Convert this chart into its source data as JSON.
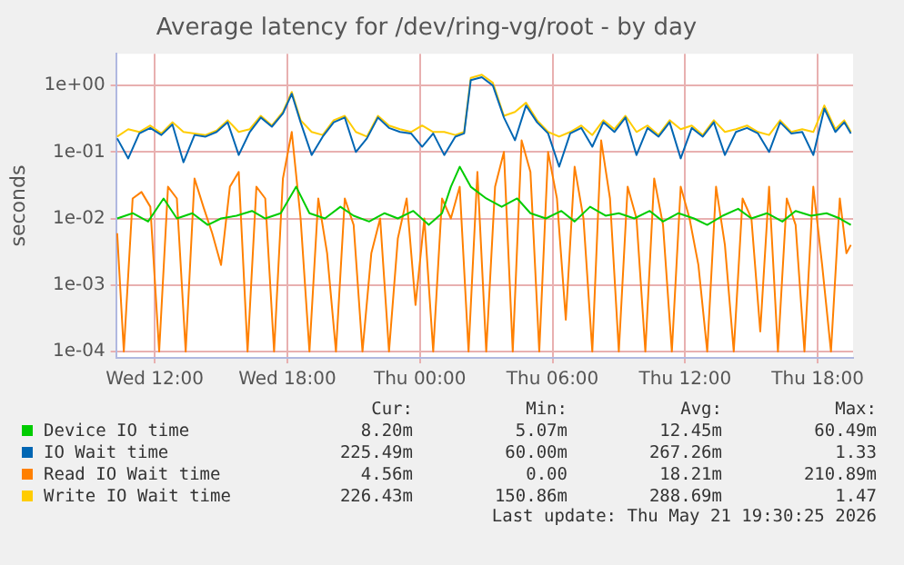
{
  "chart_data": {
    "type": "line",
    "title": "Average latency for /dev/ring-vg/root - by day",
    "ylabel": "seconds",
    "log": "y",
    "grid": true,
    "legend": "bottom",
    "marker": "none",
    "line_style": "solid",
    "xlim": [
      "2026-05-20T10:15",
      "2026-05-21T19:36"
    ],
    "xticks": [
      {
        "value": "2026-05-20T12:00",
        "label": "Wed 12:00"
      },
      {
        "value": "2026-05-20T18:00",
        "label": "Wed 18:00"
      },
      {
        "value": "2026-05-21T00:00",
        "label": "Thu 00:00"
      },
      {
        "value": "2026-05-21T06:00",
        "label": "Thu 06:00"
      },
      {
        "value": "2026-05-21T12:00",
        "label": "Thu 12:00"
      },
      {
        "value": "2026-05-21T18:00",
        "label": "Thu 18:00"
      }
    ],
    "ylim": [
      8e-05,
      3
    ],
    "yticks": [
      {
        "value": 0.0001,
        "label": "1e-04"
      },
      {
        "value": 0.001,
        "label": "1e-03"
      },
      {
        "value": 0.01,
        "label": "1e-02"
      },
      {
        "value": 0.1,
        "label": "1e-01"
      },
      {
        "value": 1,
        "label": "1e+00"
      }
    ],
    "series": [
      {
        "name": "Device IO time",
        "color": "#00cc00",
        "x": [
          "2026-05-20T10:18",
          "2026-05-20T11:00",
          "2026-05-20T11:42",
          "2026-05-20T12:24",
          "2026-05-20T13:00",
          "2026-05-20T13:42",
          "2026-05-20T14:24",
          "2026-05-20T15:00",
          "2026-05-20T15:42",
          "2026-05-20T16:24",
          "2026-05-20T17:00",
          "2026-05-20T17:42",
          "2026-05-20T18:24",
          "2026-05-20T19:00",
          "2026-05-20T19:42",
          "2026-05-20T20:24",
          "2026-05-20T21:00",
          "2026-05-20T21:42",
          "2026-05-20T22:24",
          "2026-05-20T23:00",
          "2026-05-20T23:42",
          "2026-05-21T00:24",
          "2026-05-21T01:00",
          "2026-05-21T01:24",
          "2026-05-21T01:48",
          "2026-05-21T02:18",
          "2026-05-21T03:00",
          "2026-05-21T03:42",
          "2026-05-21T04:24",
          "2026-05-21T05:00",
          "2026-05-21T05:42",
          "2026-05-21T06:24",
          "2026-05-21T07:00",
          "2026-05-21T07:42",
          "2026-05-21T08:24",
          "2026-05-21T09:00",
          "2026-05-21T09:42",
          "2026-05-21T10:24",
          "2026-05-21T11:00",
          "2026-05-21T11:42",
          "2026-05-21T12:24",
          "2026-05-21T13:00",
          "2026-05-21T13:42",
          "2026-05-21T14:24",
          "2026-05-21T15:00",
          "2026-05-21T15:42",
          "2026-05-21T16:24",
          "2026-05-21T17:00",
          "2026-05-21T17:42",
          "2026-05-21T18:24",
          "2026-05-21T19:00",
          "2026-05-21T19:30"
        ],
        "values": [
          0.01,
          0.012,
          0.009,
          0.02,
          0.01,
          0.012,
          0.008,
          0.01,
          0.011,
          0.013,
          0.01,
          0.012,
          0.03,
          0.012,
          0.01,
          0.015,
          0.011,
          0.009,
          0.012,
          0.01,
          0.013,
          0.008,
          0.012,
          0.03,
          0.06,
          0.03,
          0.02,
          0.015,
          0.02,
          0.012,
          0.01,
          0.013,
          0.009,
          0.015,
          0.011,
          0.012,
          0.01,
          0.013,
          0.009,
          0.012,
          0.01,
          0.008,
          0.011,
          0.014,
          0.01,
          0.012,
          0.009,
          0.013,
          0.011,
          0.012,
          0.01,
          0.008
        ]
      },
      {
        "name": "IO Wait time",
        "color": "#0066b3",
        "x": [
          "2026-05-20T10:18",
          "2026-05-20T10:48",
          "2026-05-20T11:18",
          "2026-05-20T11:48",
          "2026-05-20T12:18",
          "2026-05-20T12:48",
          "2026-05-20T13:18",
          "2026-05-20T13:48",
          "2026-05-20T14:18",
          "2026-05-20T14:48",
          "2026-05-20T15:18",
          "2026-05-20T15:48",
          "2026-05-20T16:18",
          "2026-05-20T16:48",
          "2026-05-20T17:18",
          "2026-05-20T17:48",
          "2026-05-20T18:12",
          "2026-05-20T18:36",
          "2026-05-20T19:06",
          "2026-05-20T19:36",
          "2026-05-20T20:06",
          "2026-05-20T20:36",
          "2026-05-20T21:06",
          "2026-05-20T21:36",
          "2026-05-20T22:06",
          "2026-05-20T22:36",
          "2026-05-20T23:06",
          "2026-05-20T23:36",
          "2026-05-21T00:06",
          "2026-05-21T00:36",
          "2026-05-21T01:06",
          "2026-05-21T01:36",
          "2026-05-21T02:00",
          "2026-05-21T02:18",
          "2026-05-21T02:48",
          "2026-05-21T03:18",
          "2026-05-21T03:48",
          "2026-05-21T04:18",
          "2026-05-21T04:48",
          "2026-05-21T05:18",
          "2026-05-21T05:48",
          "2026-05-21T06:18",
          "2026-05-21T06:48",
          "2026-05-21T07:18",
          "2026-05-21T07:48",
          "2026-05-21T08:18",
          "2026-05-21T08:48",
          "2026-05-21T09:18",
          "2026-05-21T09:48",
          "2026-05-21T10:18",
          "2026-05-21T10:48",
          "2026-05-21T11:18",
          "2026-05-21T11:48",
          "2026-05-21T12:18",
          "2026-05-21T12:48",
          "2026-05-21T13:18",
          "2026-05-21T13:48",
          "2026-05-21T14:18",
          "2026-05-21T14:48",
          "2026-05-21T15:18",
          "2026-05-21T15:48",
          "2026-05-21T16:18",
          "2026-05-21T16:48",
          "2026-05-21T17:18",
          "2026-05-21T17:48",
          "2026-05-21T18:18",
          "2026-05-21T18:48",
          "2026-05-21T19:12",
          "2026-05-21T19:30"
        ],
        "values": [
          0.16,
          0.08,
          0.19,
          0.23,
          0.18,
          0.26,
          0.07,
          0.18,
          0.17,
          0.2,
          0.28,
          0.09,
          0.2,
          0.33,
          0.24,
          0.38,
          0.75,
          0.28,
          0.09,
          0.17,
          0.28,
          0.33,
          0.1,
          0.16,
          0.33,
          0.23,
          0.2,
          0.19,
          0.12,
          0.19,
          0.09,
          0.17,
          0.19,
          1.2,
          1.33,
          1.0,
          0.33,
          0.15,
          0.5,
          0.28,
          0.19,
          0.06,
          0.19,
          0.23,
          0.12,
          0.28,
          0.2,
          0.33,
          0.09,
          0.23,
          0.17,
          0.28,
          0.08,
          0.23,
          0.17,
          0.28,
          0.09,
          0.2,
          0.23,
          0.19,
          0.1,
          0.28,
          0.19,
          0.2,
          0.09,
          0.45,
          0.2,
          0.28,
          0.19
        ]
      },
      {
        "name": "Read IO Wait time",
        "color": "#ff8000",
        "x": [
          "2026-05-20T10:18",
          "2026-05-20T10:36",
          "2026-05-20T11:00",
          "2026-05-20T11:24",
          "2026-05-20T11:48",
          "2026-05-20T12:12",
          "2026-05-20T12:36",
          "2026-05-20T13:00",
          "2026-05-20T13:24",
          "2026-05-20T13:48",
          "2026-05-20T14:12",
          "2026-05-20T14:36",
          "2026-05-20T15:00",
          "2026-05-20T15:24",
          "2026-05-20T15:48",
          "2026-05-20T16:12",
          "2026-05-20T16:36",
          "2026-05-20T17:00",
          "2026-05-20T17:24",
          "2026-05-20T17:48",
          "2026-05-20T18:12",
          "2026-05-20T18:36",
          "2026-05-20T19:00",
          "2026-05-20T19:24",
          "2026-05-20T19:48",
          "2026-05-20T20:12",
          "2026-05-20T20:36",
          "2026-05-20T21:00",
          "2026-05-20T21:24",
          "2026-05-20T21:48",
          "2026-05-20T22:12",
          "2026-05-20T22:36",
          "2026-05-20T23:00",
          "2026-05-20T23:24",
          "2026-05-20T23:48",
          "2026-05-21T00:12",
          "2026-05-21T00:36",
          "2026-05-21T01:00",
          "2026-05-21T01:24",
          "2026-05-21T01:48",
          "2026-05-21T02:12",
          "2026-05-21T02:36",
          "2026-05-21T03:00",
          "2026-05-21T03:24",
          "2026-05-21T03:48",
          "2026-05-21T04:12",
          "2026-05-21T04:36",
          "2026-05-21T05:00",
          "2026-05-21T05:24",
          "2026-05-21T05:48",
          "2026-05-21T06:12",
          "2026-05-21T06:36",
          "2026-05-21T07:00",
          "2026-05-21T07:24",
          "2026-05-21T07:48",
          "2026-05-21T08:12",
          "2026-05-21T08:36",
          "2026-05-21T09:00",
          "2026-05-21T09:24",
          "2026-05-21T09:48",
          "2026-05-21T10:12",
          "2026-05-21T10:36",
          "2026-05-21T11:00",
          "2026-05-21T11:24",
          "2026-05-21T11:48",
          "2026-05-21T12:12",
          "2026-05-21T12:36",
          "2026-05-21T13:00",
          "2026-05-21T13:24",
          "2026-05-21T13:48",
          "2026-05-21T14:12",
          "2026-05-21T14:36",
          "2026-05-21T15:00",
          "2026-05-21T15:24",
          "2026-05-21T15:48",
          "2026-05-21T16:12",
          "2026-05-21T16:36",
          "2026-05-21T17:00",
          "2026-05-21T17:24",
          "2026-05-21T17:48",
          "2026-05-21T18:12",
          "2026-05-21T18:36",
          "2026-05-21T19:00",
          "2026-05-21T19:18",
          "2026-05-21T19:30"
        ],
        "values": [
          0.006,
          0.0001,
          0.02,
          0.025,
          0.015,
          0.0001,
          0.03,
          0.02,
          0.0001,
          0.04,
          0.015,
          0.006,
          0.002,
          0.03,
          0.05,
          0.0001,
          0.03,
          0.02,
          0.0001,
          0.04,
          0.2,
          0.01,
          0.0001,
          0.02,
          0.003,
          0.0001,
          0.02,
          0.008,
          0.0001,
          0.003,
          0.01,
          0.0001,
          0.005,
          0.02,
          0.0005,
          0.01,
          0.0001,
          0.02,
          0.01,
          0.03,
          0.0001,
          0.05,
          0.0001,
          0.03,
          0.1,
          0.0001,
          0.15,
          0.05,
          0.0001,
          0.1,
          0.02,
          0.0003,
          0.06,
          0.01,
          0.0001,
          0.15,
          0.02,
          0.0001,
          0.03,
          0.01,
          0.0001,
          0.04,
          0.008,
          0.0001,
          0.03,
          0.01,
          0.002,
          0.0001,
          0.03,
          0.004,
          0.0001,
          0.02,
          0.01,
          0.0002,
          0.03,
          0.0001,
          0.02,
          0.008,
          0.0001,
          0.03,
          0.002,
          0.0001,
          0.02,
          0.003,
          0.004
        ]
      },
      {
        "name": "Write IO Wait time",
        "color": "#ffcc00",
        "x": [
          "2026-05-20T10:18",
          "2026-05-20T10:48",
          "2026-05-20T11:18",
          "2026-05-20T11:48",
          "2026-05-20T12:18",
          "2026-05-20T12:48",
          "2026-05-20T13:18",
          "2026-05-20T13:48",
          "2026-05-20T14:18",
          "2026-05-20T14:48",
          "2026-05-20T15:18",
          "2026-05-20T15:48",
          "2026-05-20T16:18",
          "2026-05-20T16:48",
          "2026-05-20T17:18",
          "2026-05-20T17:48",
          "2026-05-20T18:12",
          "2026-05-20T18:36",
          "2026-05-20T19:06",
          "2026-05-20T19:36",
          "2026-05-20T20:06",
          "2026-05-20T20:36",
          "2026-05-20T21:06",
          "2026-05-20T21:36",
          "2026-05-20T22:06",
          "2026-05-20T22:36",
          "2026-05-20T23:06",
          "2026-05-20T23:36",
          "2026-05-21T00:06",
          "2026-05-21T00:36",
          "2026-05-21T01:06",
          "2026-05-21T01:36",
          "2026-05-21T02:00",
          "2026-05-21T02:18",
          "2026-05-21T02:48",
          "2026-05-21T03:18",
          "2026-05-21T03:48",
          "2026-05-21T04:18",
          "2026-05-21T04:48",
          "2026-05-21T05:18",
          "2026-05-21T05:48",
          "2026-05-21T06:18",
          "2026-05-21T06:48",
          "2026-05-21T07:18",
          "2026-05-21T07:48",
          "2026-05-21T08:18",
          "2026-05-21T08:48",
          "2026-05-21T09:18",
          "2026-05-21T09:48",
          "2026-05-21T10:18",
          "2026-05-21T10:48",
          "2026-05-21T11:18",
          "2026-05-21T11:48",
          "2026-05-21T12:18",
          "2026-05-21T12:48",
          "2026-05-21T13:18",
          "2026-05-21T13:48",
          "2026-05-21T14:18",
          "2026-05-21T14:48",
          "2026-05-21T15:18",
          "2026-05-21T15:48",
          "2026-05-21T16:18",
          "2026-05-21T16:48",
          "2026-05-21T17:18",
          "2026-05-21T17:48",
          "2026-05-21T18:18",
          "2026-05-21T18:48",
          "2026-05-21T19:12",
          "2026-05-21T19:30"
        ],
        "values": [
          0.17,
          0.22,
          0.2,
          0.25,
          0.19,
          0.28,
          0.2,
          0.19,
          0.18,
          0.21,
          0.3,
          0.2,
          0.22,
          0.35,
          0.25,
          0.4,
          0.8,
          0.3,
          0.2,
          0.18,
          0.3,
          0.35,
          0.2,
          0.17,
          0.35,
          0.25,
          0.22,
          0.2,
          0.25,
          0.2,
          0.2,
          0.18,
          0.2,
          1.3,
          1.45,
          1.1,
          0.35,
          0.4,
          0.55,
          0.3,
          0.2,
          0.17,
          0.2,
          0.25,
          0.18,
          0.3,
          0.22,
          0.35,
          0.2,
          0.25,
          0.18,
          0.3,
          0.22,
          0.25,
          0.18,
          0.3,
          0.2,
          0.22,
          0.25,
          0.2,
          0.18,
          0.3,
          0.2,
          0.22,
          0.2,
          0.5,
          0.22,
          0.3,
          0.2
        ]
      }
    ],
    "annotations": [
      "Cur:",
      "Min:",
      "Avg:",
      "Max:",
      "8.20m",
      "5.07m",
      "12.45m",
      "60.49m",
      "225.49m",
      "60.00m",
      "267.26m",
      "1.33",
      "4.56m",
      "0.00",
      "18.21m",
      "210.89m",
      "226.43m",
      "150.86m",
      "288.69m",
      "1.47",
      "Last update: Thu May 21 19:30:25 2026"
    ]
  }
}
